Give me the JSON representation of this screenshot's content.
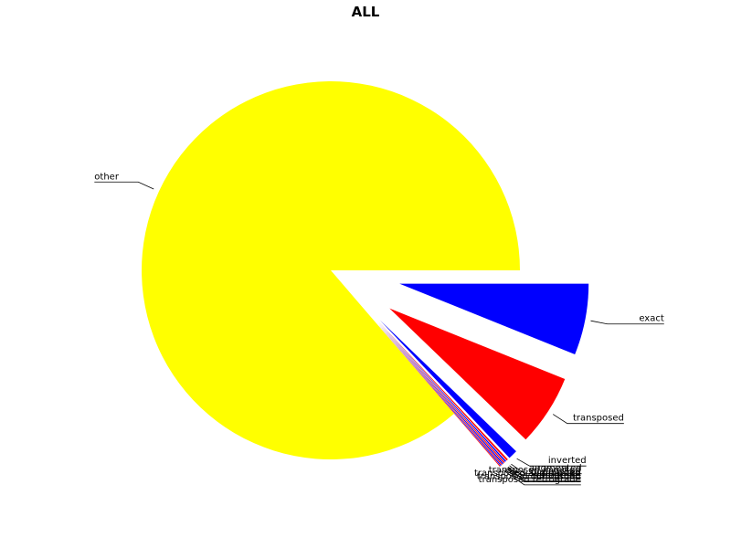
{
  "chart_data": {
    "type": "pie",
    "title": "ALL",
    "slices": [
      {
        "label": "exact",
        "value": 6.1,
        "color": "#0000ff",
        "exploded": true
      },
      {
        "label": "transposed",
        "value": 6.1,
        "color": "#ff0000",
        "exploded": true
      },
      {
        "label": "inverted",
        "value": 0.8,
        "color": "#0000ff",
        "exploded": true
      },
      {
        "label": "augmented",
        "value": 0.15,
        "color": "#ff0000",
        "exploded": true
      },
      {
        "label": "diminished",
        "value": 0.12,
        "color": "#0000ff",
        "exploded": true
      },
      {
        "label": "retrograde",
        "value": 0.1,
        "color": "#ff0000",
        "exploded": true
      },
      {
        "label": "transposed inverted",
        "value": 0.1,
        "color": "#0000ff",
        "exploded": true
      },
      {
        "label": "transposed augmented",
        "value": 0.08,
        "color": "#ff0000",
        "exploded": true
      },
      {
        "label": "transposed diminished",
        "value": 0.08,
        "color": "#0000ff",
        "exploded": true
      },
      {
        "label": "transposed retrograde",
        "value": 0.07,
        "color": "#ff0000",
        "exploded": true
      },
      {
        "label": "other",
        "value": 86.3,
        "color": "#ffff00",
        "exploded": false
      }
    ],
    "start_angle_deg": 0,
    "direction": "clockwise"
  }
}
